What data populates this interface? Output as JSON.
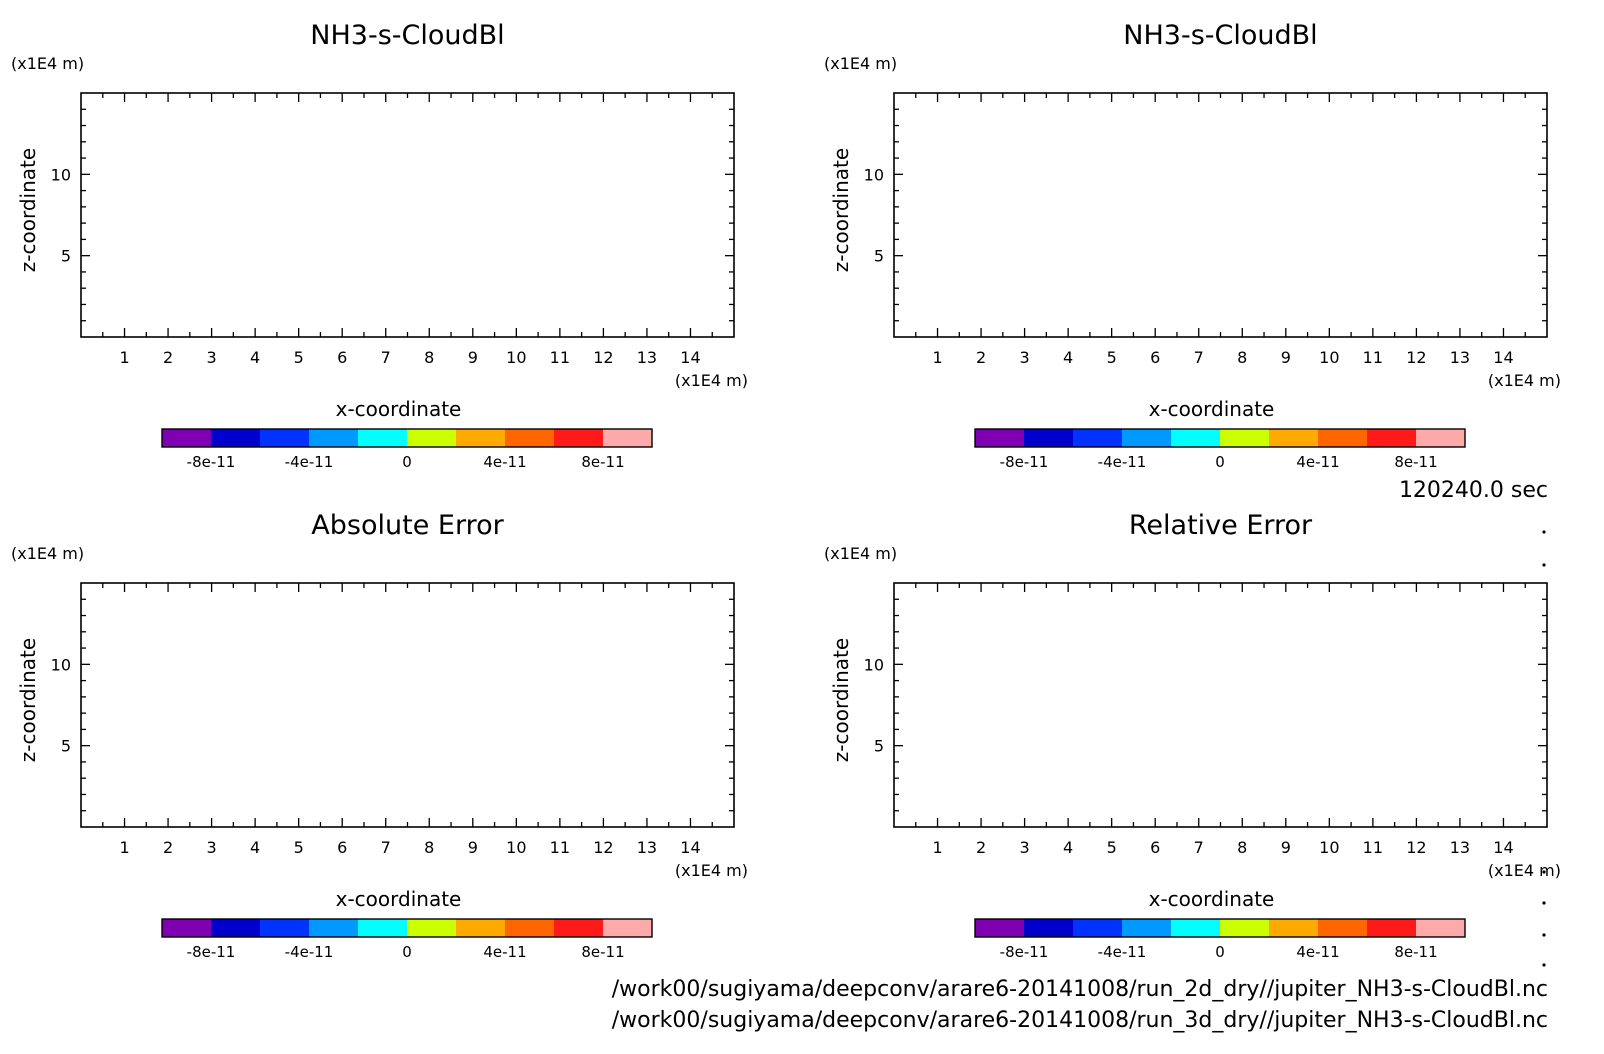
{
  "panels": [
    {
      "title": "NH3-s-CloudBl"
    },
    {
      "title": "NH3-s-CloudBl"
    },
    {
      "title": "Absolute Error"
    },
    {
      "title": "Relative Error"
    }
  ],
  "axes": {
    "xlabel": "x-coordinate",
    "ylabel": "z-coordinate",
    "x_unit": "(x1E4 m)",
    "y_unit": "(x1E4 m)",
    "x_ticks": [
      "1",
      "2",
      "3",
      "4",
      "5",
      "6",
      "7",
      "8",
      "9",
      "10",
      "11",
      "12",
      "13",
      "14"
    ],
    "y_ticks": [
      "5",
      "10"
    ]
  },
  "colorbar": {
    "colors": [
      "#7f00b2",
      "#0000cc",
      "#0033ff",
      "#0099ff",
      "#00ffff",
      "#ccff00",
      "#ffaa00",
      "#ff6600",
      "#ff1a1a",
      "#ffaaaa"
    ],
    "labels": [
      "-8e-11",
      "-4e-11",
      "0",
      "4e-11",
      "8e-11"
    ]
  },
  "time_label": "120240.0 sec",
  "file_paths": [
    "/work00/sugiyama/deepconv/arare6-20141008/run_2d_dry//jupiter_NH3-s-CloudBl.nc",
    "/work00/sugiyama/deepconv/arare6-20141008/run_3d_dry//jupiter_NH3-s-CloudBl.nc"
  ],
  "chart_data": [
    {
      "type": "heatmap",
      "title": "NH3-s-CloudBl",
      "xlabel": "x-coordinate",
      "ylabel": "z-coordinate",
      "xlim": [
        0,
        15
      ],
      "ylim": [
        0,
        15
      ],
      "values": [],
      "colorbar_range": [
        -1e-10,
        1e-10
      ],
      "colorbar_ticks": [
        -8e-11,
        -4e-11,
        0,
        4e-11,
        8e-11
      ]
    },
    {
      "type": "heatmap",
      "title": "NH3-s-CloudBl",
      "xlabel": "x-coordinate",
      "ylabel": "z-coordinate",
      "xlim": [
        0,
        15
      ],
      "ylim": [
        0,
        15
      ],
      "values": [],
      "colorbar_range": [
        -1e-10,
        1e-10
      ],
      "colorbar_ticks": [
        -8e-11,
        -4e-11,
        0,
        4e-11,
        8e-11
      ]
    },
    {
      "type": "heatmap",
      "title": "Absolute Error",
      "xlabel": "x-coordinate",
      "ylabel": "z-coordinate",
      "xlim": [
        0,
        15
      ],
      "ylim": [
        0,
        15
      ],
      "values": [],
      "colorbar_range": [
        -1e-10,
        1e-10
      ],
      "colorbar_ticks": [
        -8e-11,
        -4e-11,
        0,
        4e-11,
        8e-11
      ]
    },
    {
      "type": "heatmap",
      "title": "Relative Error",
      "xlabel": "x-coordinate",
      "ylabel": "z-coordinate",
      "xlim": [
        0,
        15
      ],
      "ylim": [
        0,
        15
      ],
      "values": [],
      "colorbar_range": [
        -1e-10,
        1e-10
      ],
      "colorbar_ticks": [
        -8e-11,
        -4e-11,
        0,
        4e-11,
        8e-11
      ]
    }
  ]
}
